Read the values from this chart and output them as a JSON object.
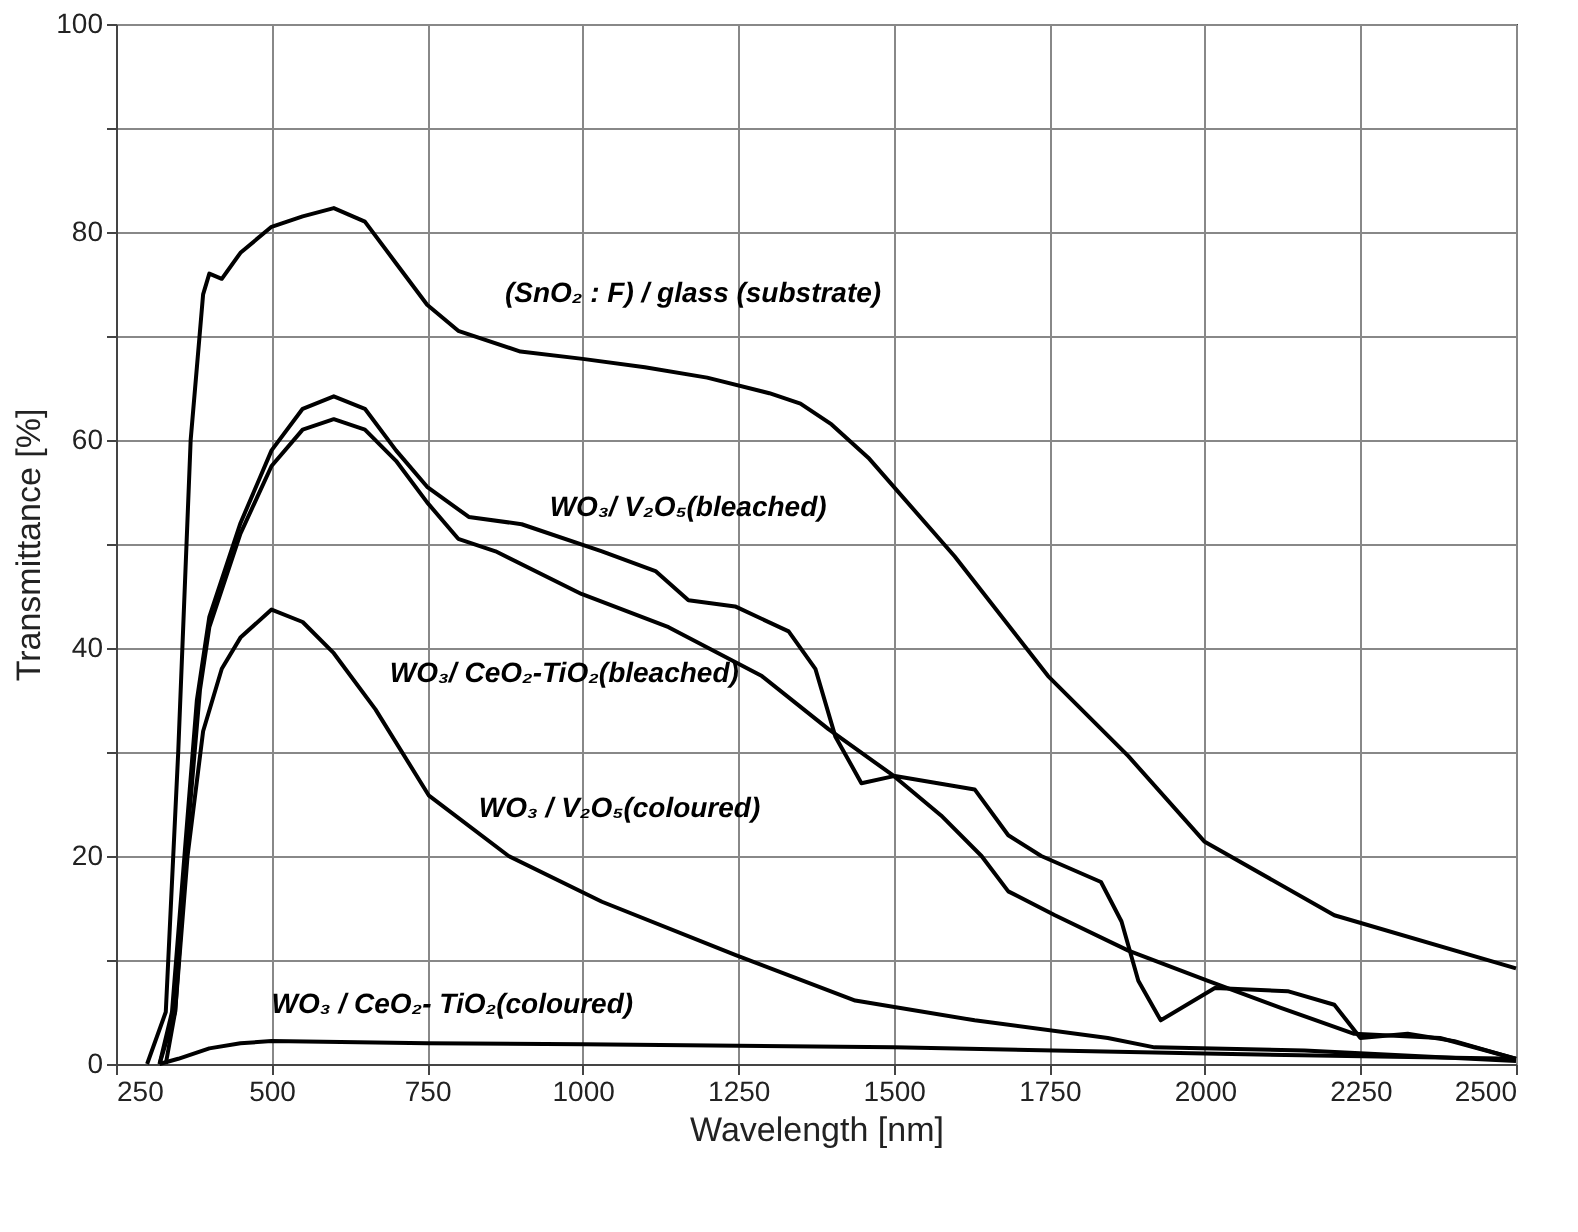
{
  "chart_data": {
    "type": "line",
    "xlabel": "Wavelength [nm]",
    "ylabel": "Transmittance [%]",
    "xlim": [
      250,
      2500
    ],
    "ylim": [
      0,
      100
    ],
    "xticks": [
      250,
      500,
      750,
      1000,
      1250,
      1500,
      1750,
      2000,
      2250,
      2500
    ],
    "yticks": [
      0,
      {
        "value": 10,
        "label": null
      },
      20,
      {
        "value": 30,
        "label": null
      },
      40,
      {
        "value": 50,
        "label": null
      },
      60,
      {
        "value": 70,
        "label": null
      },
      80,
      {
        "value": 90,
        "label": null
      },
      100
    ],
    "grid": true,
    "legend": false,
    "marker": "none",
    "line_style": "solid",
    "series": [
      {
        "name": "(SnO₂ : F) / glass (substrate)",
        "color": "#000000",
        "x": [
          300,
          330,
          350,
          370,
          390,
          400,
          420,
          450,
          500,
          550,
          600,
          650,
          700,
          750,
          800,
          900,
          1000,
          1100,
          1200,
          1300,
          1350,
          1400,
          1459,
          1598,
          1748,
          1877,
          1999,
          2208,
          2500
        ],
        "values": [
          0,
          5,
          30,
          60,
          74,
          76,
          75.5,
          78,
          80.5,
          81.5,
          82.3,
          81,
          77,
          73,
          70.5,
          68.5,
          67.8,
          67,
          66,
          64.5,
          63.5,
          61.5,
          58.3,
          48.8,
          37.3,
          29.6,
          21.4,
          14.3,
          9.2
        ]
      },
      {
        "name": "WO₃/ V₂O₅(bleached)",
        "color": "#000000",
        "x": [
          320,
          340,
          360,
          380,
          400,
          450,
          500,
          550,
          600,
          650,
          700,
          750,
          817,
          902,
          1031,
          1117,
          1170,
          1245,
          1331,
          1374,
          1406,
          1448,
          1502,
          1630,
          1684,
          1737,
          1833,
          1866,
          1893,
          1929,
          2016,
          2133,
          2208,
          2250,
          2326,
          2401,
          2500
        ],
        "values": [
          0,
          5,
          20,
          35,
          43,
          52,
          59,
          63,
          64.2,
          63,
          59,
          55.5,
          52.6,
          51.9,
          49.3,
          47.4,
          44.6,
          44,
          41.6,
          38,
          31.5,
          27,
          27.7,
          26.4,
          22,
          20,
          17.5,
          13.7,
          8,
          4.2,
          7.3,
          7,
          5.7,
          2.5,
          2.9,
          2.2,
          0.5
        ]
      },
      {
        "name": "WO₃/ CeO₂-TiO₂(bleached)",
        "color": "#000000",
        "x": [
          330,
          345,
          365,
          385,
          400,
          450,
          500,
          550,
          600,
          650,
          700,
          750,
          800,
          860,
          998,
          1138,
          1288,
          1395,
          1500,
          1576,
          1641,
          1684,
          1759,
          1877,
          2005,
          2122,
          2240,
          2378,
          2500
        ],
        "values": [
          0,
          5,
          22,
          36,
          42,
          51,
          57.5,
          61,
          62,
          61,
          58,
          54,
          50.5,
          49.3,
          45.2,
          42,
          37.3,
          32.2,
          27.7,
          23.9,
          20,
          16.6,
          14.3,
          10.9,
          8,
          5.4,
          2.9,
          2.5,
          0.5
        ]
      },
      {
        "name": "WO₃ / V₂O₅(coloured)",
        "color": "#000000",
        "x": [
          320,
          345,
          365,
          390,
          420,
          450,
          500,
          550,
          600,
          667,
          753,
          881,
          1031,
          1245,
          1438,
          1630,
          1844,
          1919,
          2160,
          2500
        ],
        "values": [
          0,
          5,
          20,
          32,
          38,
          41,
          43.7,
          42.5,
          39.5,
          34.1,
          25.8,
          20,
          15.6,
          10.5,
          6.1,
          4.2,
          2.5,
          1.6,
          1.3,
          0.3
        ]
      },
      {
        "name": "WO₃ / CeO₂- TiO₂(coloured)",
        "color": "#000000",
        "x": [
          320,
          350,
          400,
          450,
          500,
          750,
          1000,
          1500,
          2000,
          2500
        ],
        "values": [
          0,
          0.5,
          1.5,
          2,
          2.2,
          2,
          1.9,
          1.6,
          1,
          0.5
        ]
      }
    ]
  }
}
